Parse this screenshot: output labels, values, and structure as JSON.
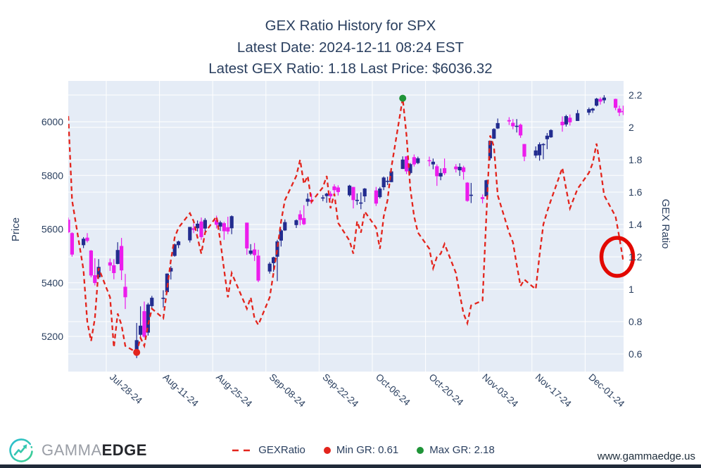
{
  "title": {
    "line1": "GEX Ratio History for SPX",
    "line2": "Latest Date: 2024-12-11 08:24 EST",
    "line3": "Latest GEX Ratio: 1.18 Last Price: $6036.32"
  },
  "axes": {
    "y_left": {
      "label": "Price",
      "ticks": [
        5200,
        5400,
        5600,
        5800,
        6000
      ]
    },
    "y_right": {
      "label": "GEX Ratio",
      "ticks": [
        0.6,
        0.8,
        1,
        1.2,
        1.4,
        1.6,
        1.8,
        2,
        2.2
      ]
    },
    "x": {
      "ticks": [
        {
          "label": "Jul-28-24",
          "date": "2024-07-28"
        },
        {
          "label": "Aug-11-24",
          "date": "2024-08-11"
        },
        {
          "label": "Aug-25-24",
          "date": "2024-08-25"
        },
        {
          "label": "Sep-08-24",
          "date": "2024-09-08"
        },
        {
          "label": "Sep-22-24",
          "date": "2024-09-22"
        },
        {
          "label": "Oct-06-24",
          "date": "2024-10-06"
        },
        {
          "label": "Oct-20-24",
          "date": "2024-10-20"
        },
        {
          "label": "Nov-03-24",
          "date": "2024-11-03"
        },
        {
          "label": "Nov-17-24",
          "date": "2024-11-17"
        },
        {
          "label": "Dec-01-24",
          "date": "2024-12-01"
        }
      ]
    }
  },
  "legend": {
    "gexratio_label": "GEXRatio",
    "min_label": "Min GR: 0.61",
    "max_label": "Max GR: 2.18"
  },
  "branding": {
    "name_light": "GAMMA",
    "name_bold": "EDGE",
    "site_url": "www.gammaedge.us"
  },
  "colors": {
    "text": "#2a3f5f",
    "plot_bg": "#e5ecf6",
    "grid": "#ffffff",
    "candle_up": "#222c8f",
    "candle_down": "#ec1cec",
    "gex_line": "#e3241c",
    "min_dot": "#e3241c",
    "max_dot": "#1f9438",
    "highlight_circle": "#e20800",
    "brand_teal": "#2bbdd4",
    "brand_green": "#3ecf8e"
  },
  "chart_data": {
    "type": "candlestick+line",
    "title": "GEX Ratio History for SPX",
    "ylabel_left": "Price",
    "ylabel_right": "GEX Ratio",
    "ylim_price": [
      5069,
      6152
    ],
    "ylim_gex": [
      0.49,
      2.29
    ],
    "legend_position": "bottom",
    "grid": true,
    "dates": [
      "2024-07-18",
      "2024-07-19",
      "2024-07-22",
      "2024-07-23",
      "2024-07-24",
      "2024-07-25",
      "2024-07-26",
      "2024-07-29",
      "2024-07-30",
      "2024-07-31",
      "2024-08-01",
      "2024-08-02",
      "2024-08-05",
      "2024-08-06",
      "2024-08-07",
      "2024-08-08",
      "2024-08-09",
      "2024-08-12",
      "2024-08-13",
      "2024-08-14",
      "2024-08-15",
      "2024-08-16",
      "2024-08-19",
      "2024-08-20",
      "2024-08-21",
      "2024-08-22",
      "2024-08-23",
      "2024-08-26",
      "2024-08-27",
      "2024-08-28",
      "2024-08-29",
      "2024-08-30",
      "2024-09-03",
      "2024-09-04",
      "2024-09-05",
      "2024-09-06",
      "2024-09-09",
      "2024-09-10",
      "2024-09-11",
      "2024-09-12",
      "2024-09-13",
      "2024-09-16",
      "2024-09-17",
      "2024-09-18",
      "2024-09-19",
      "2024-09-20",
      "2024-09-23",
      "2024-09-24",
      "2024-09-25",
      "2024-09-26",
      "2024-09-27",
      "2024-09-30",
      "2024-10-01",
      "2024-10-02",
      "2024-10-03",
      "2024-10-04",
      "2024-10-07",
      "2024-10-08",
      "2024-10-09",
      "2024-10-10",
      "2024-10-11",
      "2024-10-14",
      "2024-10-15",
      "2024-10-16",
      "2024-10-17",
      "2024-10-18",
      "2024-10-21",
      "2024-10-22",
      "2024-10-23",
      "2024-10-24",
      "2024-10-25",
      "2024-10-28",
      "2024-10-29",
      "2024-10-30",
      "2024-10-31",
      "2024-11-01",
      "2024-11-04",
      "2024-11-05",
      "2024-11-06",
      "2024-11-07",
      "2024-11-08",
      "2024-11-11",
      "2024-11-12",
      "2024-11-13",
      "2024-11-14",
      "2024-11-15",
      "2024-11-18",
      "2024-11-19",
      "2024-11-20",
      "2024-11-21",
      "2024-11-22",
      "2024-11-25",
      "2024-11-26",
      "2024-11-27",
      "2024-11-29",
      "2024-12-02",
      "2024-12-03",
      "2024-12-04",
      "2024-12-05",
      "2024-12-06",
      "2024-12-09",
      "2024-12-10",
      "2024-12-11"
    ],
    "series": [
      {
        "name": "Price",
        "type": "candlestick",
        "ohlc": [
          [
            5635,
            5643,
            5585,
            5588
          ],
          [
            5585,
            5588,
            5497,
            5505
          ],
          [
            5540,
            5570,
            5529,
            5564
          ],
          [
            5568,
            5585,
            5550,
            5556
          ],
          [
            5520,
            5522,
            5420,
            5427
          ],
          [
            5428,
            5491,
            5390,
            5399
          ],
          [
            5420,
            5488,
            5414,
            5459
          ],
          [
            5476,
            5490,
            5444,
            5464
          ],
          [
            5465,
            5488,
            5413,
            5436
          ],
          [
            5470,
            5551,
            5469,
            5522
          ],
          [
            5537,
            5567,
            5410,
            5446
          ],
          [
            5385,
            5433,
            5302,
            5346
          ],
          [
            5151,
            5250,
            5119,
            5186
          ],
          [
            5206,
            5312,
            5193,
            5240
          ],
          [
            5294,
            5330,
            5195,
            5199
          ],
          [
            5214,
            5325,
            5203,
            5319
          ],
          [
            5313,
            5351,
            5300,
            5344
          ],
          [
            5342,
            5372,
            5308,
            5344
          ],
          [
            5365,
            5435,
            5360,
            5434
          ],
          [
            5442,
            5462,
            5412,
            5455
          ],
          [
            5500,
            5546,
            5497,
            5543
          ],
          [
            5540,
            5557,
            5529,
            5554
          ],
          [
            5558,
            5608,
            5550,
            5608
          ],
          [
            5603,
            5620,
            5585,
            5597
          ],
          [
            5603,
            5632,
            5591,
            5620
          ],
          [
            5628,
            5643,
            5560,
            5570
          ],
          [
            5602,
            5641,
            5585,
            5634
          ],
          [
            5634,
            5650,
            5602,
            5616
          ],
          [
            5609,
            5631,
            5593,
            5625
          ],
          [
            5622,
            5627,
            5560,
            5592
          ],
          [
            5607,
            5646,
            5581,
            5591
          ],
          [
            5603,
            5651,
            5581,
            5648
          ],
          [
            5624,
            5624,
            5504,
            5528
          ],
          [
            5508,
            5544,
            5503,
            5520
          ],
          [
            5524,
            5548,
            5481,
            5503
          ],
          [
            5501,
            5523,
            5402,
            5408
          ],
          [
            5442,
            5477,
            5434,
            5471
          ],
          [
            5473,
            5497,
            5441,
            5495
          ],
          [
            5497,
            5560,
            5406,
            5554
          ],
          [
            5557,
            5600,
            5535,
            5595
          ],
          [
            5595,
            5636,
            5593,
            5626
          ],
          [
            5615,
            5636,
            5604,
            5633
          ],
          [
            5655,
            5670,
            5614,
            5634
          ],
          [
            5641,
            5689,
            5615,
            5618
          ],
          [
            5702,
            5733,
            5686,
            5713
          ],
          [
            5709,
            5733,
            5694,
            5702
          ],
          [
            5718,
            5727,
            5704,
            5718
          ],
          [
            5723,
            5735,
            5698,
            5732
          ],
          [
            5732,
            5741,
            5711,
            5722
          ],
          [
            5759,
            5767,
            5731,
            5745
          ],
          [
            5755,
            5763,
            5725,
            5738
          ],
          [
            5726,
            5765,
            5721,
            5762
          ],
          [
            5757,
            5757,
            5677,
            5708
          ],
          [
            5708,
            5733,
            5690,
            5709
          ],
          [
            5698,
            5737,
            5674,
            5699
          ],
          [
            5722,
            5753,
            5701,
            5751
          ],
          [
            5744,
            5757,
            5686,
            5695
          ],
          [
            5719,
            5757,
            5714,
            5751
          ],
          [
            5756,
            5796,
            5745,
            5792
          ],
          [
            5779,
            5795,
            5764,
            5780
          ],
          [
            5775,
            5822,
            5775,
            5815
          ],
          [
            5824,
            5871,
            5824,
            5859
          ],
          [
            5871,
            5872,
            5805,
            5815
          ],
          [
            5809,
            5846,
            5804,
            5842
          ],
          [
            5868,
            5878,
            5833,
            5841
          ],
          [
            5846,
            5870,
            5842,
            5864
          ],
          [
            5857,
            5870,
            5834,
            5853
          ],
          [
            5841,
            5863,
            5823,
            5851
          ],
          [
            5834,
            5841,
            5761,
            5797
          ],
          [
            5796,
            5826,
            5782,
            5809
          ],
          [
            5827,
            5863,
            5801,
            5808
          ],
          [
            5833,
            5842,
            5811,
            5823
          ],
          [
            5819,
            5845,
            5798,
            5832
          ],
          [
            5830,
            5836,
            5784,
            5813
          ],
          [
            5773,
            5775,
            5702,
            5705
          ],
          [
            5724,
            5772,
            5697,
            5728
          ],
          [
            5719,
            5729,
            5696,
            5712
          ],
          [
            5722,
            5784,
            5722,
            5782
          ],
          [
            5864,
            5929,
            5856,
            5929
          ],
          [
            5937,
            5976,
            5936,
            5973
          ],
          [
            5975,
            6012,
            5973,
            5995
          ],
          [
            6006,
            6017,
            5988,
            6001
          ],
          [
            5996,
            6010,
            5972,
            5983
          ],
          [
            5985,
            6010,
            5960,
            5985
          ],
          [
            5989,
            5993,
            5940,
            5949
          ],
          [
            5917,
            5917,
            5853,
            5870
          ],
          [
            5874,
            5908,
            5865,
            5893
          ],
          [
            5875,
            5923,
            5855,
            5916
          ],
          [
            5914,
            5920,
            5860,
            5917
          ],
          [
            5935,
            5958,
            5898,
            5948
          ],
          [
            5942,
            5972,
            5940,
            5969
          ],
          [
            6000,
            6020,
            5963,
            5987
          ],
          [
            5990,
            6026,
            5982,
            6021
          ],
          [
            6015,
            6027,
            5986,
            5998
          ],
          [
            6003,
            6044,
            6003,
            6032
          ],
          [
            6034,
            6053,
            6025,
            6047
          ],
          [
            6042,
            6052,
            6033,
            6049
          ],
          [
            6060,
            6089,
            6057,
            6086
          ],
          [
            6085,
            6091,
            6064,
            6075
          ],
          [
            6080,
            6099,
            6069,
            6090
          ],
          [
            6085,
            6086,
            6043,
            6052
          ],
          [
            6049,
            6060,
            6021,
            6034
          ],
          [
            6040,
            6060,
            6025,
            6036
          ]
        ]
      },
      {
        "name": "GEXRatio",
        "type": "line",
        "style": "dashed",
        "values": [
          2.07,
          1.55,
          1.12,
          0.8,
          0.68,
          0.82,
          1.13,
          0.95,
          0.64,
          0.85,
          0.78,
          0.65,
          0.61,
          0.7,
          0.65,
          0.78,
          0.88,
          0.82,
          1.0,
          1.18,
          1.32,
          1.38,
          1.47,
          1.42,
          1.32,
          1.22,
          1.35,
          1.45,
          1.3,
          1.12,
          0.95,
          1.1,
          0.88,
          0.95,
          0.82,
          0.78,
          0.95,
          1.1,
          1.25,
          1.42,
          1.55,
          1.7,
          1.8,
          1.65,
          1.7,
          1.54,
          1.63,
          1.7,
          1.5,
          1.59,
          1.41,
          1.3,
          1.22,
          1.42,
          1.35,
          1.48,
          1.38,
          1.25,
          1.45,
          1.55,
          1.75,
          2.18,
          1.95,
          1.62,
          1.45,
          1.35,
          1.25,
          1.13,
          1.2,
          1.22,
          1.28,
          1.1,
          0.97,
          0.85,
          0.79,
          0.9,
          0.93,
          1.45,
          1.95,
          1.88,
          1.58,
          1.35,
          1.29,
          1.15,
          1.02,
          1.06,
          1.0,
          1.21,
          1.4,
          1.48,
          1.55,
          1.75,
          1.62,
          1.5,
          1.62,
          1.72,
          1.78,
          1.9,
          1.75,
          1.58,
          1.45,
          1.32,
          1.18
        ]
      }
    ],
    "annotations": {
      "min": {
        "label": "Min GR: 0.61",
        "date": "2024-08-05",
        "value": 0.61
      },
      "max": {
        "label": "Max GR: 2.18",
        "date": "2024-10-14",
        "value": 2.18
      },
      "highlight_circle": {
        "date": "2024-12-10",
        "gex_value": 1.2,
        "note": "latest GEX ratio 1.18 circled"
      }
    },
    "latest": {
      "date_text": "2024-12-11 08:24 EST",
      "gex_ratio": 1.18,
      "last_price": 6036.32
    }
  }
}
